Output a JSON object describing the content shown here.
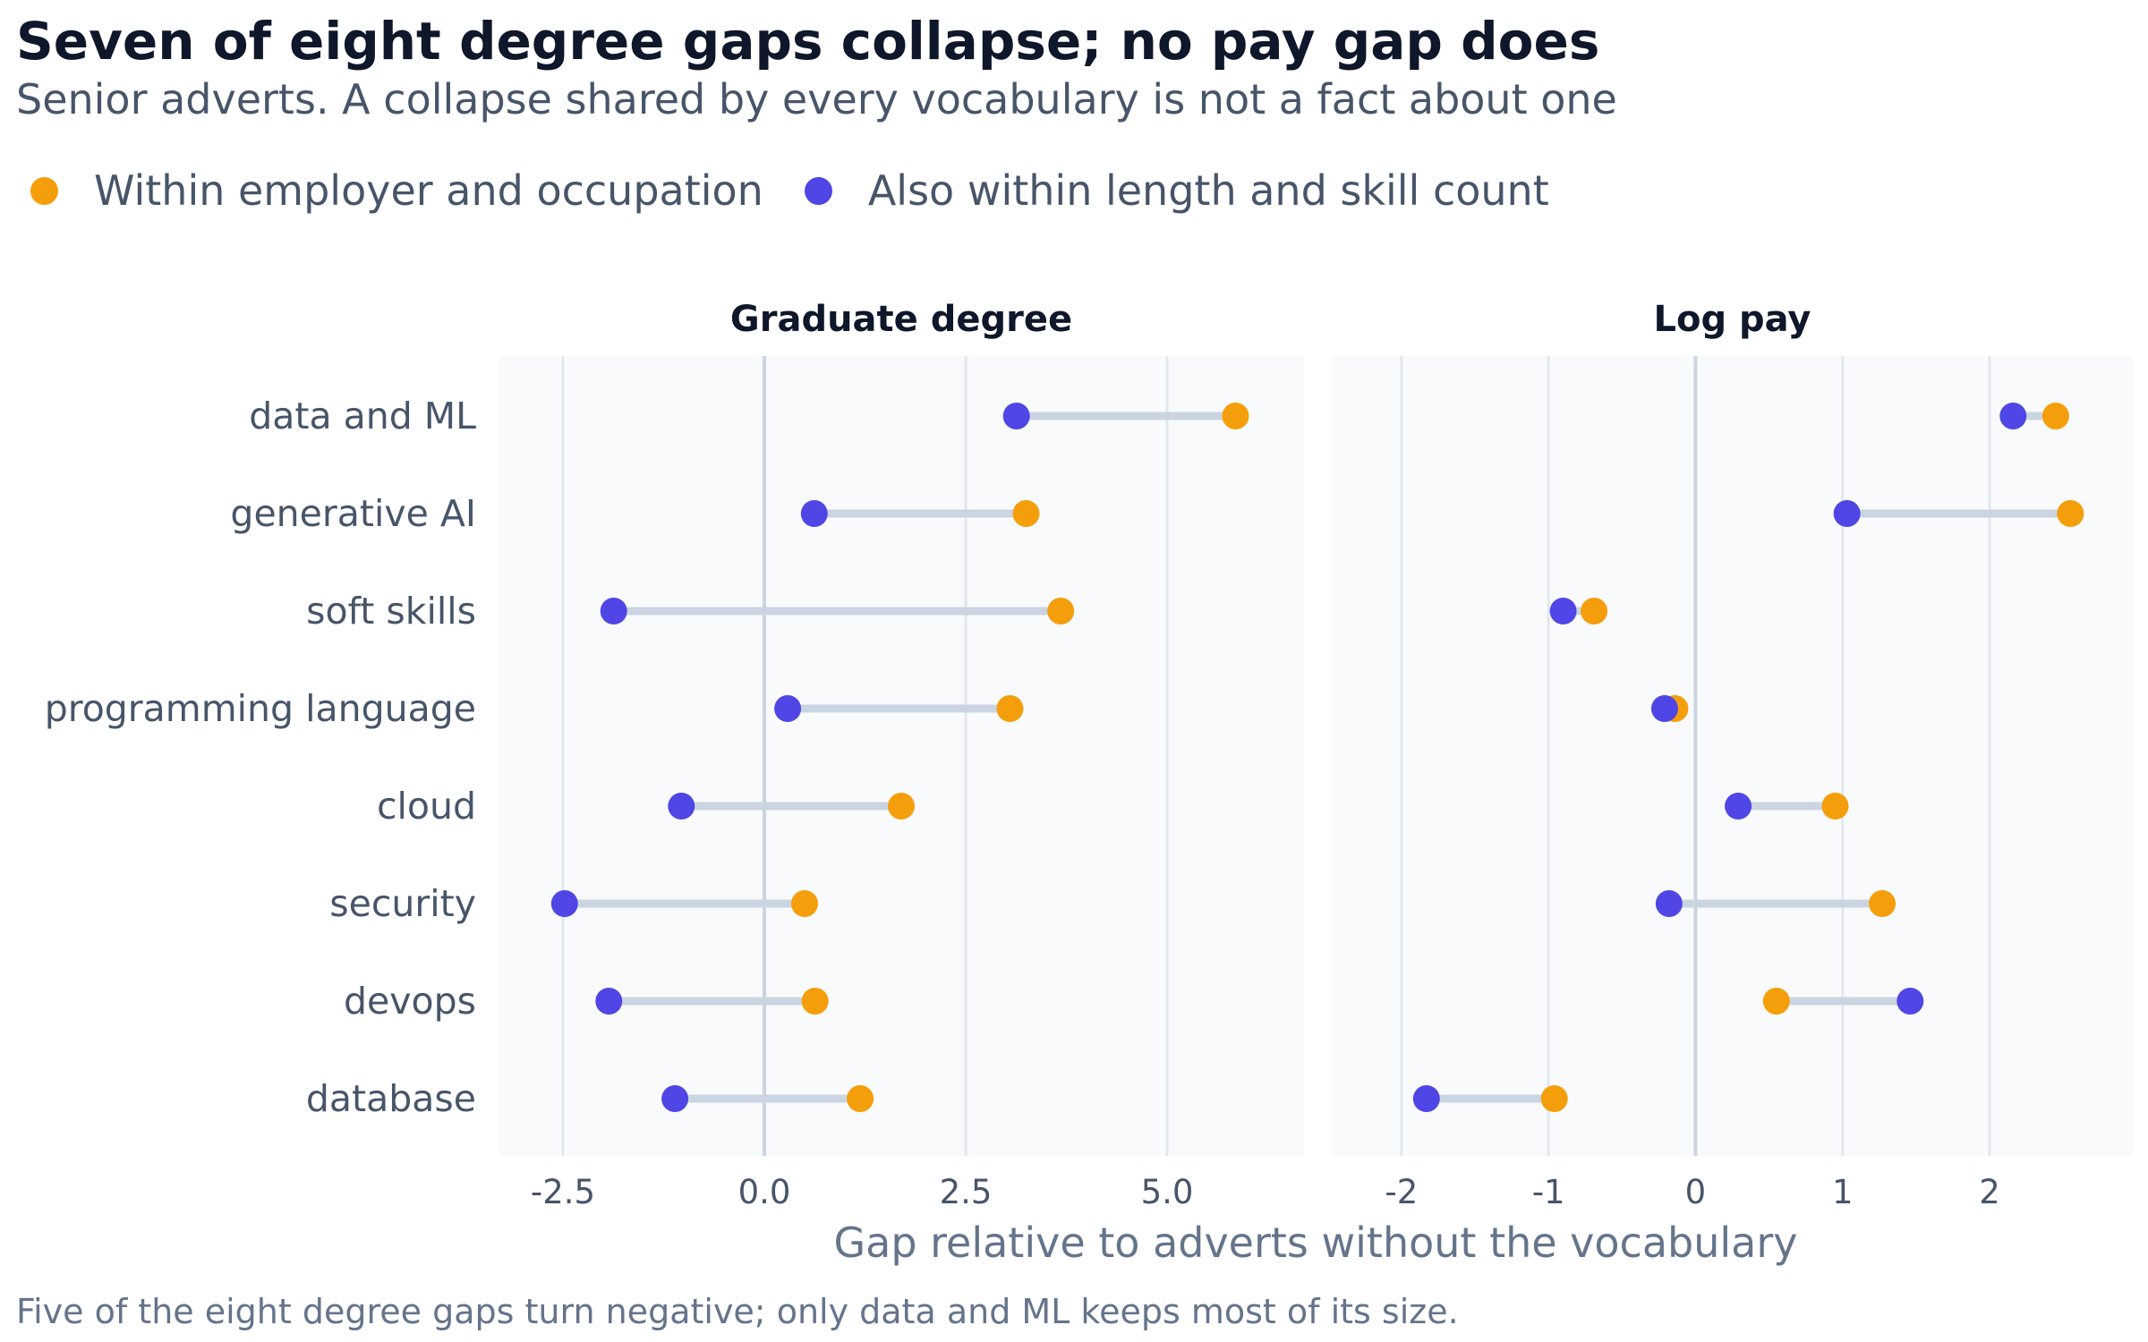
{
  "title": "Seven of eight degree gaps collapse; no pay gap does",
  "subtitle": "Senior adverts. A collapse shared by every vocabulary is not a fact about one",
  "legend": [
    {
      "label": "Within employer and occupation",
      "color": "#f59e0b"
    },
    {
      "label": "Also within length and skill count",
      "color": "#4f46e5"
    }
  ],
  "footnote": "Five of the eight degree gaps turn negative; only data and ML keeps most of its size.",
  "chart_data": {
    "type": "dumbbell",
    "categories": [
      "data and ML",
      "generative AI",
      "soft skills",
      "programming language",
      "cloud",
      "security",
      "devops",
      "database"
    ],
    "xlabel": "Gap relative to adverts without the vocabulary",
    "colors": {
      "within_employer_occupation": "#f59e0b",
      "also_length_skill": "#4f46e5",
      "connector": "#cbd5e1",
      "panel_bg": "#f8fafc",
      "grid": "#e2e8f0",
      "zero_line": "#cbd5e1"
    },
    "panels": [
      {
        "title": "Graduate degree",
        "xlim": [
          -3.3,
          6.7
        ],
        "ticks": [
          -2.5,
          0.0,
          2.5,
          5.0
        ],
        "tick_labels": [
          "-2.5",
          "0.0",
          "2.5",
          "5.0"
        ],
        "series": [
          {
            "name": "Within employer and occupation",
            "values": [
              5.85,
              3.25,
              3.68,
              3.05,
              1.7,
              0.5,
              0.63,
              1.19
            ]
          },
          {
            "name": "Also within length and skill count",
            "values": [
              3.13,
              0.62,
              -1.87,
              0.29,
              -1.03,
              -2.48,
              -1.93,
              -1.11
            ]
          }
        ]
      },
      {
        "title": "Log pay",
        "xlim": [
          -2.48,
          2.98
        ],
        "ticks": [
          -2,
          -1,
          0,
          1,
          2
        ],
        "tick_labels": [
          "-2",
          "-1",
          "0",
          "1",
          "2"
        ],
        "series": [
          {
            "name": "Within employer and occupation",
            "values": [
              2.45,
              2.55,
              -0.69,
              -0.14,
              0.95,
              1.27,
              0.55,
              -0.96
            ]
          },
          {
            "name": "Also within length and skill count",
            "values": [
              2.16,
              1.03,
              -0.9,
              -0.21,
              0.29,
              -0.18,
              1.46,
              -1.83
            ]
          }
        ]
      }
    ]
  }
}
